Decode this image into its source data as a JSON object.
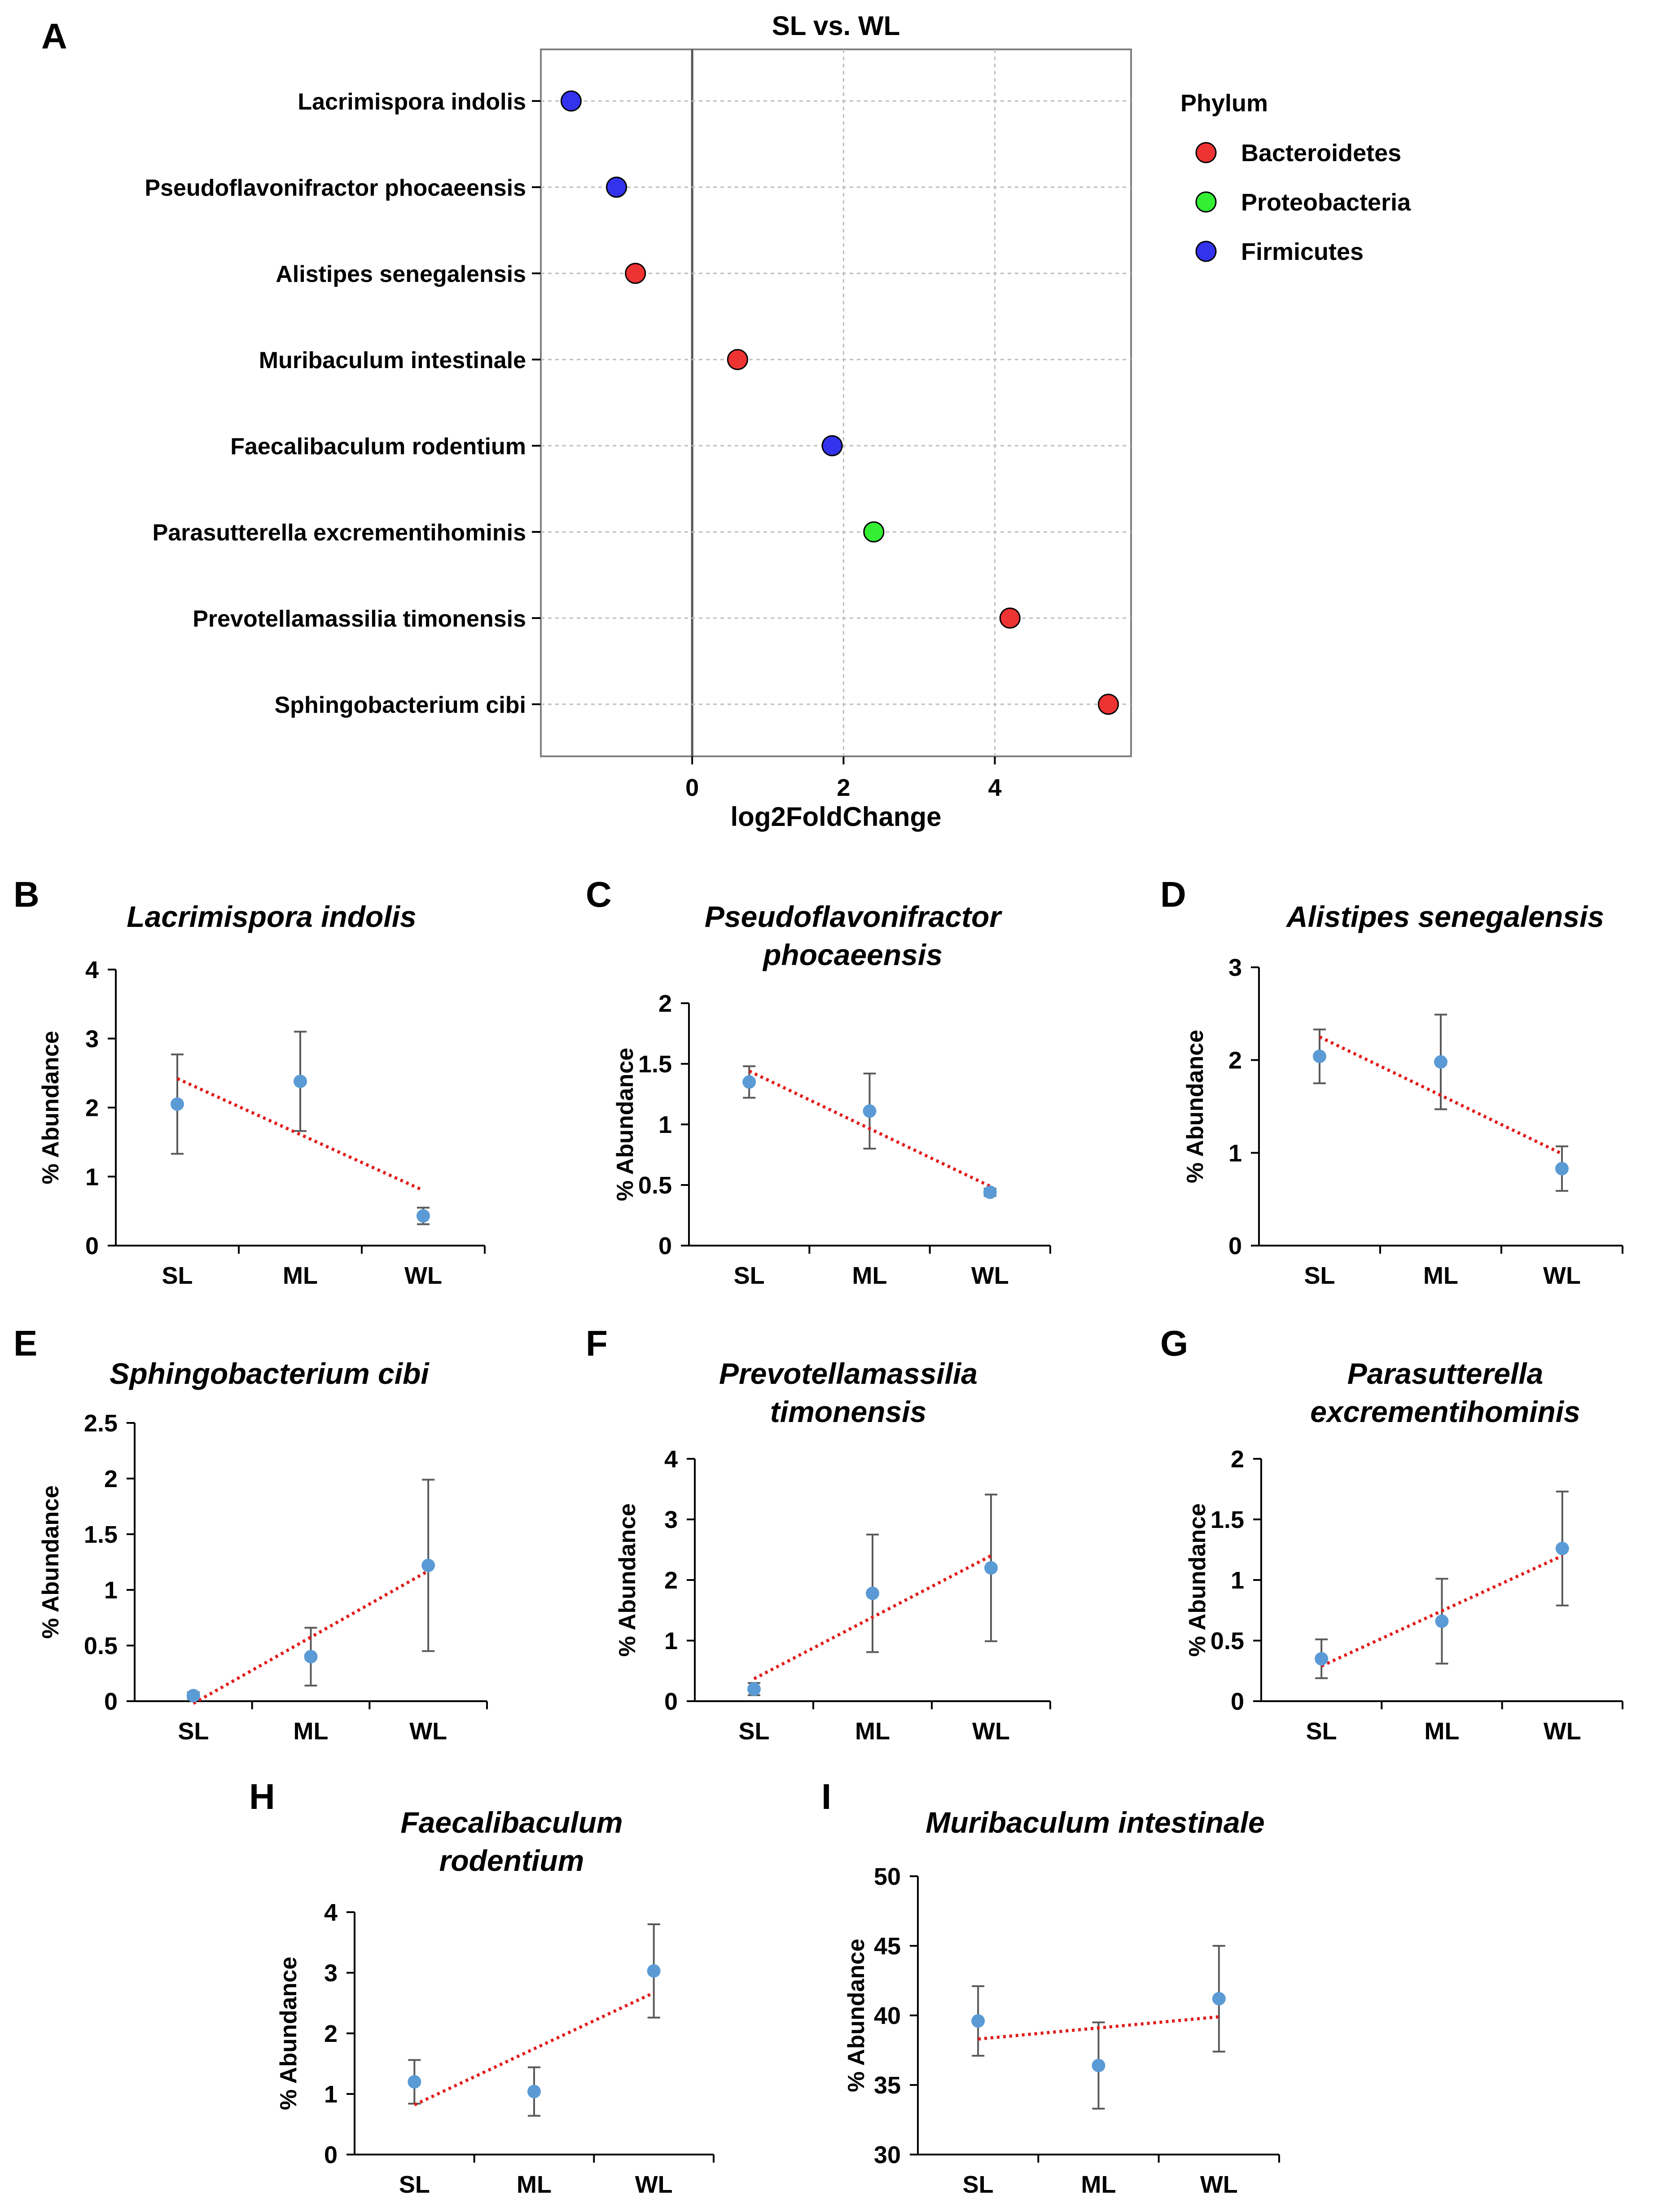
{
  "colors": {
    "Bacteroidetes": "#ee3333",
    "Proteobacteria": "#33ee33",
    "Firmicutes": "#3333ee",
    "point": "#5b9bd5",
    "trend": "#e11a1a"
  },
  "chart_data": [
    {
      "id": "A",
      "letter": "A",
      "type": "scatter",
      "title": "SL vs. WL",
      "xlabel": "log2FoldChange",
      "xlim": [
        -2.0,
        5.8
      ],
      "xticks": [
        "0",
        "2",
        "4"
      ],
      "legend": {
        "title": "Phylum",
        "position": "right",
        "items": [
          {
            "label": "Bacteroidetes",
            "color": "#ee3333"
          },
          {
            "label": "Proteobacteria",
            "color": "#33ee33"
          },
          {
            "label": "Firmicutes",
            "color": "#3333ee"
          }
        ]
      },
      "points": [
        {
          "species": "Lacrimispora indolis",
          "value": -1.6,
          "phylum": "Firmicutes"
        },
        {
          "species": "Pseudoflavonifractor phocaeensis",
          "value": -1.0,
          "phylum": "Firmicutes"
        },
        {
          "species": "Alistipes senegalensis",
          "value": -0.75,
          "phylum": "Bacteroidetes"
        },
        {
          "species": "Muribaculum intestinale",
          "value": 0.6,
          "phylum": "Bacteroidetes"
        },
        {
          "species": "Faecalibaculum rodentium",
          "value": 1.85,
          "phylum": "Firmicutes"
        },
        {
          "species": "Parasutterella excrementihominis",
          "value": 2.4,
          "phylum": "Proteobacteria"
        },
        {
          "species": "Prevotellamassilia timonensis",
          "value": 4.2,
          "phylum": "Bacteroidetes"
        },
        {
          "species": "Sphingobacterium cibi",
          "value": 5.5,
          "phylum": "Bacteroidetes"
        }
      ]
    },
    {
      "id": "B",
      "letter": "B",
      "type": "scatter",
      "title": [
        "Lacrimispora indolis"
      ],
      "ylabel": "% Abundance",
      "categories": [
        "SL",
        "ML",
        "WL"
      ],
      "ylim": [
        0,
        4
      ],
      "yticks": [
        "0",
        "1",
        "2",
        "3",
        "4"
      ],
      "means": [
        2.05,
        2.38,
        0.43
      ],
      "errors": [
        0.72,
        0.72,
        0.12
      ],
      "trend": [
        2.42,
        0.8
      ]
    },
    {
      "id": "C",
      "letter": "C",
      "type": "scatter",
      "title": [
        "Pseudoflavonifractor",
        "phocaeensis"
      ],
      "ylabel": "% Abundance",
      "categories": [
        "SL",
        "ML",
        "WL"
      ],
      "ylim": [
        0,
        2
      ],
      "yticks": [
        "0",
        "0.5",
        "1",
        "1.5",
        "2"
      ],
      "means": [
        1.35,
        1.11,
        0.44
      ],
      "errors": [
        0.13,
        0.31,
        0.03
      ],
      "trend": [
        1.44,
        0.49
      ]
    },
    {
      "id": "D",
      "letter": "D",
      "type": "scatter",
      "title": [
        "Alistipes senegalensis"
      ],
      "ylabel": "% Abundance",
      "categories": [
        "SL",
        "ML",
        "WL"
      ],
      "ylim": [
        0,
        3
      ],
      "yticks": [
        "0",
        "1",
        "2",
        "3"
      ],
      "means": [
        2.04,
        1.98,
        0.83
      ],
      "errors": [
        0.29,
        0.51,
        0.24
      ],
      "trend": [
        2.25,
        0.99
      ]
    },
    {
      "id": "E",
      "letter": "E",
      "type": "scatter",
      "title": [
        "Sphingobacterium cibi"
      ],
      "ylabel": "% Abundance",
      "categories": [
        "SL",
        "ML",
        "WL"
      ],
      "ylim": [
        0,
        2.5
      ],
      "yticks": [
        "0",
        "0.5",
        "1",
        "1.5",
        "2",
        "2.5"
      ],
      "means": [
        0.05,
        0.4,
        1.22
      ],
      "errors": [
        0.03,
        0.26,
        0.77
      ],
      "trend": [
        -0.02,
        1.17
      ]
    },
    {
      "id": "F",
      "letter": "F",
      "type": "scatter",
      "title": [
        "Prevotellamassilia",
        "timonensis"
      ],
      "ylabel": "% Abundance",
      "categories": [
        "SL",
        "ML",
        "WL"
      ],
      "ylim": [
        0,
        4
      ],
      "yticks": [
        "0",
        "1",
        "2",
        "3",
        "4"
      ],
      "means": [
        0.2,
        1.78,
        2.2
      ],
      "errors": [
        0.1,
        0.97,
        1.21
      ],
      "trend": [
        0.37,
        2.4
      ]
    },
    {
      "id": "G",
      "letter": "G",
      "type": "scatter",
      "title": [
        "Parasutterella",
        "excrementihominis"
      ],
      "ylabel": "% Abundance",
      "categories": [
        "SL",
        "ML",
        "WL"
      ],
      "ylim": [
        0,
        2
      ],
      "yticks": [
        "0",
        "0.5",
        "1",
        "1.5",
        "2"
      ],
      "means": [
        0.35,
        0.66,
        1.26
      ],
      "errors": [
        0.16,
        0.35,
        0.47
      ],
      "trend": [
        0.29,
        1.2
      ]
    },
    {
      "id": "H",
      "letter": "H",
      "type": "scatter",
      "title": [
        "Faecalibaculum",
        "rodentium"
      ],
      "ylabel": "% Abundance",
      "categories": [
        "SL",
        "ML",
        "WL"
      ],
      "ylim": [
        0,
        4
      ],
      "yticks": [
        "0",
        "1",
        "2",
        "3",
        "4"
      ],
      "means": [
        1.2,
        1.04,
        3.03
      ],
      "errors": [
        0.36,
        0.4,
        0.77
      ],
      "trend": [
        0.82,
        2.67
      ]
    },
    {
      "id": "I",
      "letter": "I",
      "type": "scatter",
      "title": [
        "Muribaculum intestinale"
      ],
      "ylabel": "% Abundance",
      "categories": [
        "SL",
        "ML",
        "WL"
      ],
      "ylim": [
        30,
        50
      ],
      "yticks": [
        "30",
        "35",
        "40",
        "45",
        "50"
      ],
      "means": [
        39.6,
        36.4,
        41.2
      ],
      "errors": [
        2.5,
        3.1,
        3.8
      ],
      "trend": [
        38.3,
        39.9
      ]
    }
  ]
}
